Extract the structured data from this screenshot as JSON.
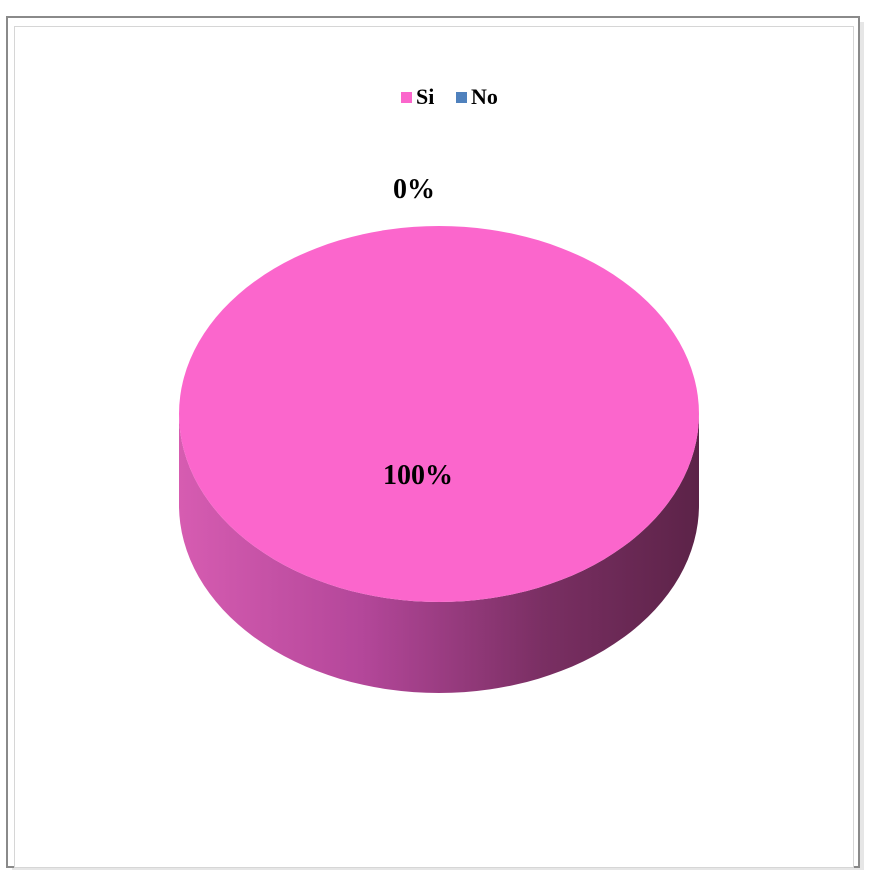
{
  "chart_data": {
    "type": "pie",
    "title": "",
    "legend_position": "top",
    "categories": [
      "Si",
      "No"
    ],
    "values": [
      100,
      0
    ],
    "data_labels": [
      "100%",
      "0%"
    ],
    "colors": [
      "#fb66cc",
      "#4f81bd"
    ],
    "style": "3d"
  }
}
